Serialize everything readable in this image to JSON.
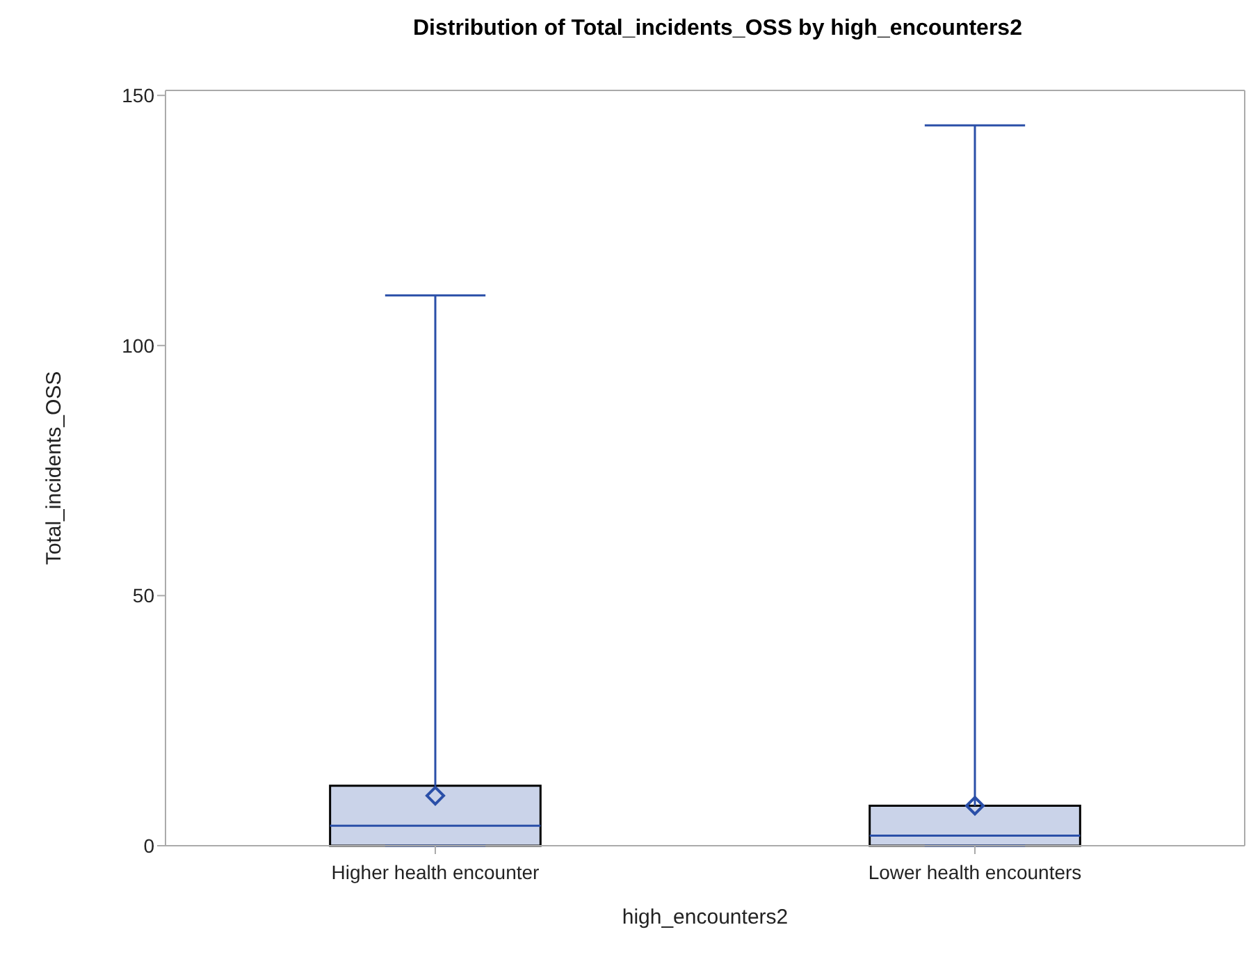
{
  "chart_data": {
    "type": "box",
    "title": "Distribution of Total_incidents_OSS by high_encounters2",
    "xlabel": "high_encounters2",
    "ylabel": "Total_incidents_OSS",
    "categories": [
      "Higher health encounter",
      "Lower health encounters"
    ],
    "boxes": [
      {
        "low": 0,
        "q1": 0,
        "median": 4,
        "q3": 12,
        "high": 110,
        "mean": 10
      },
      {
        "low": 0,
        "q1": 0,
        "median": 2,
        "q3": 8,
        "high": 144,
        "mean": 8
      }
    ],
    "color": "#2a4fa8",
    "marker": "diamond",
    "ylim": [
      0,
      151
    ],
    "yticks": [
      0,
      50,
      100,
      150
    ],
    "grid": false,
    "legend": false
  }
}
